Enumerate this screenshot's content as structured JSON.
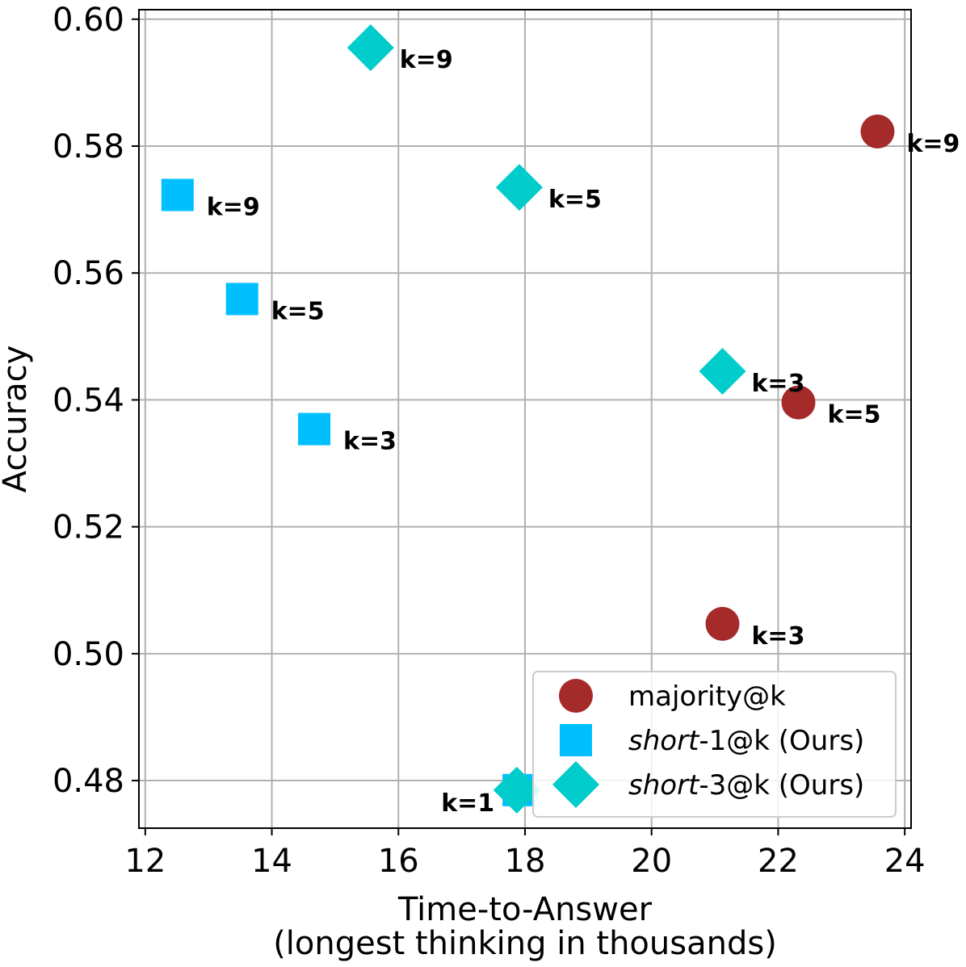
{
  "chart_data": {
    "type": "scatter",
    "title": "",
    "xlabel": "Time-to-Answer",
    "xlabel_line2": "(longest thinking in thousands)",
    "ylabel": "Accuracy",
    "xlim": [
      11.9,
      24.1
    ],
    "ylim": [
      0.4725,
      0.6015
    ],
    "xticks": [
      12,
      14,
      16,
      18,
      20,
      22,
      24
    ],
    "xtick_labels": [
      "12",
      "14",
      "16",
      "18",
      "20",
      "22",
      "24"
    ],
    "yticks": [
      0.48,
      0.5,
      0.52,
      0.54,
      0.56,
      0.58,
      0.6
    ],
    "ytick_labels": [
      "0.48",
      "0.50",
      "0.52",
      "0.54",
      "0.56",
      "0.58",
      "0.60"
    ],
    "grid": true,
    "legend_position": "lower-right",
    "series": [
      {
        "name": "majority@k",
        "legend_prefix": "",
        "legend_suffix": "majority@k",
        "marker": "circle",
        "color": "#a52a2a",
        "points": [
          {
            "x": 21.12,
            "y": 0.5047,
            "label": "k=3"
          },
          {
            "x": 22.32,
            "y": 0.5396,
            "label": "k=5"
          },
          {
            "x": 23.57,
            "y": 0.5823,
            "label": "k=9"
          }
        ]
      },
      {
        "name": "short-1@k (Ours)",
        "legend_prefix": "short",
        "legend_suffix": "-1@k  (Ours)",
        "marker": "square",
        "color": "#00bfff",
        "points": [
          {
            "x": 17.9,
            "y": 0.4785,
            "label": "k=1"
          },
          {
            "x": 14.67,
            "y": 0.5354,
            "label": "k=3"
          },
          {
            "x": 13.53,
            "y": 0.5559,
            "label": "k=5"
          },
          {
            "x": 12.51,
            "y": 0.5723,
            "label": "k=9"
          }
        ]
      },
      {
        "name": "short-3@k (Ours)",
        "legend_prefix": "short",
        "legend_suffix": "-3@k  (Ours)",
        "marker": "diamond",
        "color": "#00cccc",
        "points": [
          {
            "x": 17.87,
            "y": 0.4785,
            "label": ""
          },
          {
            "x": 21.12,
            "y": 0.5445,
            "label": "k=3"
          },
          {
            "x": 17.91,
            "y": 0.5735,
            "label": "k=5"
          },
          {
            "x": 15.56,
            "y": 0.5955,
            "label": "k=9"
          }
        ]
      }
    ]
  }
}
